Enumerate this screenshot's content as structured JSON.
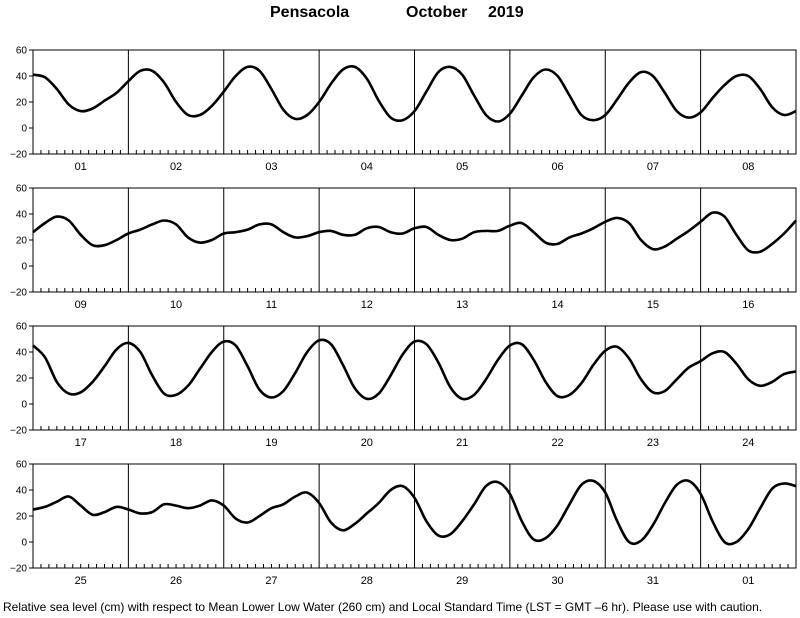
{
  "title": {
    "location": "Pensacola",
    "month": "October",
    "year": "2019"
  },
  "footnote": "Relative sea level (cm) with respect to Mean Lower Low Water (260 cm) and Local Standard Time (LST = GMT –6 hr). Please use with caution.",
  "chart_data": [
    {
      "type": "line",
      "ylim": [
        -20,
        60
      ],
      "yticks": [
        "60",
        "40",
        "20",
        "0",
        "−20"
      ],
      "grid": "vertical day dividers only",
      "categories": [
        "01",
        "02",
        "03",
        "04",
        "05",
        "06",
        "07",
        "08"
      ],
      "x_unit": "hours from start of 01 Oct (LST)",
      "x": [
        0,
        3,
        6,
        9,
        12,
        15,
        18,
        21,
        24,
        27,
        30,
        33,
        36,
        39,
        42,
        45,
        48,
        51,
        54,
        57,
        60,
        63,
        66,
        69,
        72,
        75,
        78,
        81,
        84,
        87,
        90,
        93,
        96,
        99,
        102,
        105,
        108,
        111,
        114,
        117,
        120,
        123,
        126,
        129,
        132,
        135,
        138,
        141,
        144,
        147,
        150,
        153,
        156,
        159,
        162,
        165,
        168,
        171,
        174,
        177,
        180,
        183,
        186,
        189,
        192
      ],
      "y": [
        41,
        39,
        30,
        18,
        13,
        15,
        21,
        27,
        36,
        44,
        44,
        35,
        20,
        10,
        10,
        17,
        28,
        40,
        47,
        44,
        30,
        14,
        7,
        10,
        20,
        34,
        45,
        47,
        38,
        21,
        8,
        6,
        13,
        28,
        43,
        47,
        41,
        25,
        10,
        5,
        11,
        25,
        39,
        45,
        40,
        25,
        10,
        6,
        10,
        22,
        35,
        43,
        40,
        27,
        13,
        8,
        12,
        23,
        33,
        40,
        40,
        30,
        16,
        10,
        13
      ]
    },
    {
      "type": "line",
      "ylim": [
        -20,
        60
      ],
      "yticks": [
        "60",
        "40",
        "20",
        "0",
        "−20"
      ],
      "grid": "vertical day dividers only",
      "categories": [
        "09",
        "10",
        "11",
        "12",
        "13",
        "14",
        "15",
        "16"
      ],
      "x_unit": "hours from start of 09 Oct (LST)",
      "x": [
        0,
        3,
        6,
        9,
        12,
        15,
        18,
        21,
        24,
        27,
        30,
        33,
        36,
        39,
        42,
        45,
        48,
        51,
        54,
        57,
        60,
        63,
        66,
        69,
        72,
        75,
        78,
        81,
        84,
        87,
        90,
        93,
        96,
        99,
        102,
        105,
        108,
        111,
        114,
        117,
        120,
        123,
        126,
        129,
        132,
        135,
        138,
        141,
        144,
        147,
        150,
        153,
        156,
        159,
        162,
        165,
        168,
        171,
        174,
        177,
        180,
        183,
        186,
        189,
        192
      ],
      "y": [
        26,
        33,
        38,
        35,
        24,
        16,
        16,
        20,
        25,
        28,
        32,
        35,
        32,
        22,
        18,
        20,
        25,
        26,
        28,
        32,
        32,
        26,
        22,
        23,
        26,
        27,
        24,
        24,
        29,
        30,
        26,
        25,
        29,
        30,
        24,
        20,
        21,
        26,
        27,
        27,
        31,
        33,
        26,
        18,
        17,
        22,
        25,
        29,
        34,
        37,
        33,
        20,
        13,
        15,
        21,
        27,
        34,
        41,
        38,
        24,
        12,
        11,
        17,
        25,
        35
      ]
    },
    {
      "type": "line",
      "ylim": [
        -20,
        60
      ],
      "yticks": [
        "60",
        "40",
        "20",
        "0",
        "−20"
      ],
      "grid": "vertical day dividers only",
      "categories": [
        "17",
        "18",
        "19",
        "20",
        "21",
        "22",
        "23",
        "24"
      ],
      "x_unit": "hours from start of 17 Oct (LST)",
      "x": [
        0,
        3,
        6,
        9,
        12,
        15,
        18,
        21,
        24,
        27,
        30,
        33,
        36,
        39,
        42,
        45,
        48,
        51,
        54,
        57,
        60,
        63,
        66,
        69,
        72,
        75,
        78,
        81,
        84,
        87,
        90,
        93,
        96,
        99,
        102,
        105,
        108,
        111,
        114,
        117,
        120,
        123,
        126,
        129,
        132,
        135,
        138,
        141,
        144,
        147,
        150,
        153,
        156,
        159,
        162,
        165,
        168,
        171,
        174,
        177,
        180,
        183,
        186,
        189,
        192
      ],
      "y": [
        45,
        36,
        17,
        8,
        9,
        17,
        29,
        42,
        47,
        40,
        22,
        8,
        7,
        14,
        27,
        40,
        48,
        45,
        29,
        11,
        5,
        10,
        24,
        40,
        49,
        46,
        30,
        12,
        4,
        8,
        22,
        38,
        48,
        46,
        32,
        13,
        4,
        7,
        19,
        34,
        45,
        46,
        34,
        17,
        6,
        7,
        16,
        30,
        41,
        44,
        35,
        19,
        9,
        10,
        19,
        28,
        33,
        39,
        40,
        31,
        19,
        14,
        17,
        23,
        25
      ]
    },
    {
      "type": "line",
      "ylim": [
        -20,
        60
      ],
      "yticks": [
        "60",
        "40",
        "20",
        "0",
        "−20"
      ],
      "grid": "vertical day dividers only",
      "categories": [
        "25",
        "26",
        "27",
        "28",
        "29",
        "30",
        "31",
        "01"
      ],
      "x_unit": "hours from start of 25 Oct (LST)",
      "x": [
        0,
        3,
        6,
        9,
        12,
        15,
        18,
        21,
        24,
        27,
        30,
        33,
        36,
        39,
        42,
        45,
        48,
        51,
        54,
        57,
        60,
        63,
        66,
        69,
        72,
        75,
        78,
        81,
        84,
        87,
        90,
        93,
        96,
        99,
        102,
        105,
        108,
        111,
        114,
        117,
        120,
        123,
        126,
        129,
        132,
        135,
        138,
        141,
        144,
        147,
        150,
        153,
        156,
        159,
        162,
        165,
        168,
        171,
        174,
        177,
        180,
        183,
        186,
        189,
        192
      ],
      "y": [
        25,
        27,
        31,
        35,
        28,
        21,
        23,
        27,
        25,
        22,
        23,
        29,
        28,
        26,
        28,
        32,
        28,
        18,
        15,
        20,
        26,
        29,
        35,
        38,
        30,
        15,
        9,
        14,
        22,
        30,
        40,
        43,
        34,
        16,
        5,
        6,
        16,
        29,
        43,
        46,
        37,
        16,
        2,
        3,
        13,
        29,
        44,
        47,
        38,
        16,
        0,
        1,
        13,
        30,
        44,
        47,
        37,
        16,
        0,
        0,
        10,
        26,
        41,
        45,
        43
      ]
    }
  ]
}
